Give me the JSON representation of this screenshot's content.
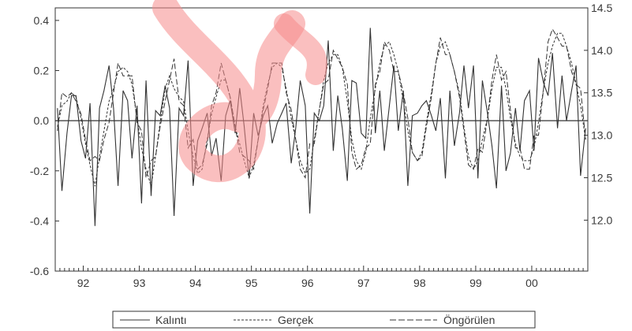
{
  "chart_data": {
    "type": "line",
    "x_axis": {
      "tick_labels": [
        "92",
        "93",
        "94",
        "95",
        "96",
        "97",
        "98",
        "99",
        "00"
      ],
      "range": [
        1991.5,
        2001.0
      ],
      "minor_ticks_per_year": 12
    },
    "left_axis": {
      "ticks": [
        0.4,
        0.2,
        0.0,
        -0.2,
        -0.4,
        -0.6
      ],
      "tick_labels": [
        "0.4",
        "0.2",
        "0.0",
        "-0.2",
        "-0.4",
        "-0.6"
      ],
      "range": [
        -0.6,
        0.45
      ]
    },
    "right_axis": {
      "ticks": [
        14.5,
        14.0,
        13.5,
        13.0,
        12.5,
        12.0
      ],
      "tick_labels": [
        "14.5",
        "14.0",
        "13.5",
        "13.0",
        "12.5",
        "12.0"
      ],
      "range": [
        11.4,
        14.5
      ]
    },
    "zero_line": true,
    "grid": false,
    "legend_position": "bottom",
    "series": [
      {
        "name": "Kalıntı",
        "axis": "left",
        "style": "solid",
        "x": [
          1991.54,
          1991.62,
          1991.71,
          1991.79,
          1991.87,
          1991.96,
          1992.04,
          1992.12,
          1992.21,
          1992.29,
          1992.37,
          1992.46,
          1992.54,
          1992.62,
          1992.71,
          1992.79,
          1992.87,
          1992.96,
          1993.04,
          1993.12,
          1993.21,
          1993.29,
          1993.37,
          1993.46,
          1993.54,
          1993.62,
          1993.71,
          1993.79,
          1993.87,
          1993.96,
          1994.04,
          1994.12,
          1994.21,
          1994.29,
          1994.37,
          1994.46,
          1994.54,
          1994.62,
          1994.71,
          1994.79,
          1994.87,
          1994.96,
          1995.04,
          1995.12,
          1995.21,
          1995.29,
          1995.37,
          1995.46,
          1995.54,
          1995.62,
          1995.71,
          1995.79,
          1995.87,
          1995.96,
          1996.04,
          1996.12,
          1996.21,
          1996.29,
          1996.37,
          1996.46,
          1996.54,
          1996.62,
          1996.71,
          1996.79,
          1996.87,
          1996.96,
          1997.04,
          1997.12,
          1997.21,
          1997.29,
          1997.37,
          1997.46,
          1997.54,
          1997.62,
          1997.71,
          1997.79,
          1997.87,
          1997.96,
          1998.04,
          1998.12,
          1998.21,
          1998.29,
          1998.37,
          1998.46,
          1998.54,
          1998.62,
          1998.71,
          1998.79,
          1998.87,
          1998.96,
          1999.04,
          1999.12,
          1999.21,
          1999.29,
          1999.37,
          1999.46,
          1999.54,
          1999.62,
          1999.71,
          1999.79,
          1999.87,
          1999.96,
          2000.04,
          2000.12,
          2000.21,
          2000.29,
          2000.37,
          2000.46,
          2000.54,
          2000.62,
          2000.71,
          2000.79,
          2000.87,
          2000.96
        ],
        "values": [
          0.05,
          -0.28,
          -0.05,
          0.1,
          0.1,
          -0.08,
          -0.15,
          0.07,
          -0.42,
          0.05,
          0.12,
          0.22,
          0.05,
          -0.26,
          0.12,
          0.08,
          -0.15,
          0.06,
          -0.33,
          0.16,
          -0.3,
          0.04,
          0.02,
          0.14,
          0.05,
          -0.38,
          0.05,
          0.02,
          0.24,
          -0.26,
          -0.08,
          -0.03,
          0.03,
          -0.14,
          -0.07,
          -0.24,
          0.02,
          0.08,
          -0.05,
          0.13,
          -0.02,
          -0.23,
          0.03,
          -0.06,
          0.02,
          0.06,
          -0.09,
          -0.01,
          0.03,
          0.07,
          -0.17,
          -0.03,
          0.16,
          0.06,
          -0.37,
          0.03,
          0.0,
          0.06,
          0.32,
          -0.12,
          0.1,
          -0.03,
          -0.24,
          0.16,
          0.15,
          -0.05,
          -0.07,
          0.37,
          -0.05,
          0.12,
          -0.12,
          0.06,
          0.22,
          -0.04,
          0.12,
          -0.26,
          0.02,
          0.03,
          0.06,
          0.08,
          0.02,
          -0.04,
          0.09,
          -0.23,
          0.12,
          -0.1,
          0.03,
          0.22,
          0.05,
          0.22,
          -0.23,
          0.16,
          0.03,
          -0.1,
          -0.27,
          0.14,
          -0.2,
          -0.13,
          0.05,
          -0.12,
          0.08,
          0.12,
          -0.12,
          0.25,
          0.15,
          0.1,
          0.27,
          -0.03,
          0.18,
          0.0,
          0.12,
          0.22,
          -0.22,
          -0.03
        ]
      },
      {
        "name": "Gerçek",
        "axis": "right",
        "style": "short-dash",
        "x": [
          1991.54,
          1991.62,
          1991.71,
          1991.79,
          1991.87,
          1991.96,
          1992.04,
          1992.12,
          1992.21,
          1992.29,
          1992.37,
          1992.46,
          1992.54,
          1992.62,
          1992.71,
          1992.79,
          1992.87,
          1992.96,
          1993.04,
          1993.12,
          1993.21,
          1993.29,
          1993.37,
          1993.46,
          1993.54,
          1993.62,
          1993.71,
          1993.79,
          1993.87,
          1993.96,
          1994.04,
          1994.12,
          1994.21,
          1994.29,
          1994.37,
          1994.46,
          1994.54,
          1994.62,
          1994.71,
          1994.79,
          1994.87,
          1994.96,
          1995.04,
          1995.12,
          1995.21,
          1995.29,
          1995.37,
          1995.46,
          1995.54,
          1995.62,
          1995.71,
          1995.79,
          1995.87,
          1995.96,
          1996.04,
          1996.12,
          1996.21,
          1996.29,
          1996.37,
          1996.46,
          1996.54,
          1996.62,
          1996.71,
          1996.79,
          1996.87,
          1996.96,
          1997.04,
          1997.12,
          1997.21,
          1997.29,
          1997.37,
          1997.46,
          1997.54,
          1997.62,
          1997.71,
          1997.79,
          1997.87,
          1997.96,
          1998.04,
          1998.12,
          1998.21,
          1998.29,
          1998.37,
          1998.46,
          1998.54,
          1998.62,
          1998.71,
          1998.79,
          1998.87,
          1998.96,
          1999.04,
          1999.12,
          1999.21,
          1999.29,
          1999.37,
          1999.46,
          1999.54,
          1999.62,
          1999.71,
          1999.79,
          1999.87,
          1999.96,
          2000.04,
          2000.12,
          2000.21,
          2000.29,
          2000.37,
          2000.46,
          2000.54,
          2000.62,
          2000.71,
          2000.79,
          2000.87,
          2000.96
        ],
        "values": [
          13.1,
          13.35,
          13.4,
          13.5,
          13.45,
          13.2,
          12.9,
          12.65,
          12.4,
          12.75,
          13.05,
          13.4,
          13.55,
          13.75,
          13.8,
          13.75,
          13.6,
          13.2,
          12.85,
          12.6,
          12.4,
          12.75,
          13.15,
          13.55,
          13.7,
          13.55,
          13.45,
          13.4,
          13.05,
          12.75,
          12.55,
          12.6,
          12.95,
          13.25,
          13.45,
          13.65,
          13.65,
          13.45,
          13.1,
          12.9,
          12.7,
          12.5,
          12.65,
          12.95,
          13.35,
          13.6,
          13.8,
          13.85,
          13.8,
          13.55,
          13.2,
          12.95,
          12.7,
          12.55,
          12.6,
          12.95,
          13.3,
          13.65,
          13.85,
          13.95,
          13.95,
          13.8,
          13.4,
          12.95,
          12.7,
          12.6,
          12.8,
          13.2,
          13.55,
          13.85,
          14.05,
          14.1,
          13.95,
          13.75,
          13.4,
          13.05,
          12.8,
          12.7,
          12.8,
          13.15,
          13.5,
          13.85,
          14.05,
          14.1,
          13.95,
          13.75,
          13.5,
          13.1,
          12.75,
          12.6,
          12.7,
          12.95,
          13.2,
          13.55,
          13.8,
          13.8,
          13.55,
          13.2,
          12.9,
          12.75,
          12.7,
          12.7,
          12.85,
          13.15,
          13.55,
          13.85,
          14.05,
          14.2,
          14.2,
          14.05,
          13.85,
          13.6,
          13.35,
          12.95
        ]
      },
      {
        "name": "Öngörülen",
        "axis": "right",
        "style": "long-dash",
        "x": [
          1991.54,
          1991.62,
          1991.71,
          1991.79,
          1991.87,
          1991.96,
          1992.04,
          1992.12,
          1992.21,
          1992.29,
          1992.37,
          1992.46,
          1992.54,
          1992.62,
          1992.71,
          1992.79,
          1992.87,
          1992.96,
          1993.04,
          1993.12,
          1993.21,
          1993.29,
          1993.37,
          1993.46,
          1993.54,
          1993.62,
          1993.71,
          1993.79,
          1993.87,
          1993.96,
          1994.04,
          1994.12,
          1994.21,
          1994.29,
          1994.37,
          1994.46,
          1994.54,
          1994.62,
          1994.71,
          1994.79,
          1994.87,
          1994.96,
          1995.04,
          1995.12,
          1995.21,
          1995.29,
          1995.37,
          1995.46,
          1995.54,
          1995.62,
          1995.71,
          1995.79,
          1995.87,
          1995.96,
          1996.04,
          1996.12,
          1996.21,
          1996.29,
          1996.37,
          1996.46,
          1996.54,
          1996.62,
          1996.71,
          1996.79,
          1996.87,
          1996.96,
          1997.04,
          1997.12,
          1997.21,
          1997.29,
          1997.37,
          1997.46,
          1997.54,
          1997.62,
          1997.71,
          1997.79,
          1997.87,
          1997.96,
          1998.04,
          1998.12,
          1998.21,
          1998.29,
          1998.37,
          1998.46,
          1998.54,
          1998.62,
          1998.71,
          1998.79,
          1998.87,
          1998.96,
          1999.04,
          1999.12,
          1999.21,
          1999.29,
          1999.37,
          1999.46,
          1999.54,
          1999.62,
          1999.71,
          1999.79,
          1999.87,
          1999.96,
          2000.04,
          2000.12,
          2000.21,
          2000.29,
          2000.37,
          2000.46,
          2000.54,
          2000.62,
          2000.71,
          2000.79,
          2000.87,
          2000.96
        ],
        "values": [
          13.05,
          13.5,
          13.45,
          13.5,
          13.4,
          13.25,
          12.95,
          12.7,
          12.75,
          12.7,
          12.95,
          13.15,
          13.5,
          13.85,
          13.7,
          13.7,
          13.7,
          13.15,
          13.05,
          12.5,
          12.7,
          12.75,
          13.1,
          13.4,
          13.65,
          13.9,
          13.4,
          13.35,
          12.85,
          12.95,
          12.6,
          12.65,
          12.9,
          13.35,
          13.5,
          13.85,
          13.65,
          13.45,
          13.1,
          12.8,
          12.75,
          12.7,
          12.6,
          12.95,
          13.3,
          13.55,
          13.85,
          13.85,
          13.85,
          13.5,
          13.3,
          12.95,
          12.6,
          12.5,
          12.9,
          12.9,
          13.3,
          13.6,
          13.65,
          14.0,
          13.9,
          13.8,
          13.6,
          12.8,
          12.6,
          12.65,
          12.85,
          12.9,
          13.6,
          13.75,
          14.1,
          14.0,
          13.75,
          13.75,
          13.5,
          13.2,
          12.8,
          12.7,
          12.75,
          13.1,
          13.45,
          13.85,
          14.15,
          13.95,
          13.95,
          13.75,
          13.45,
          13.05,
          12.65,
          12.6,
          12.85,
          12.8,
          13.2,
          13.65,
          13.95,
          13.65,
          13.75,
          13.3,
          12.85,
          12.85,
          12.6,
          12.6,
          13.0,
          13.0,
          13.55,
          14.1,
          14.25,
          14.15,
          14.05,
          14.05,
          13.75,
          13.6,
          13.55,
          12.95
        ]
      }
    ]
  },
  "watermark": {
    "color": "#f58a8a",
    "opacity": 0.55
  }
}
